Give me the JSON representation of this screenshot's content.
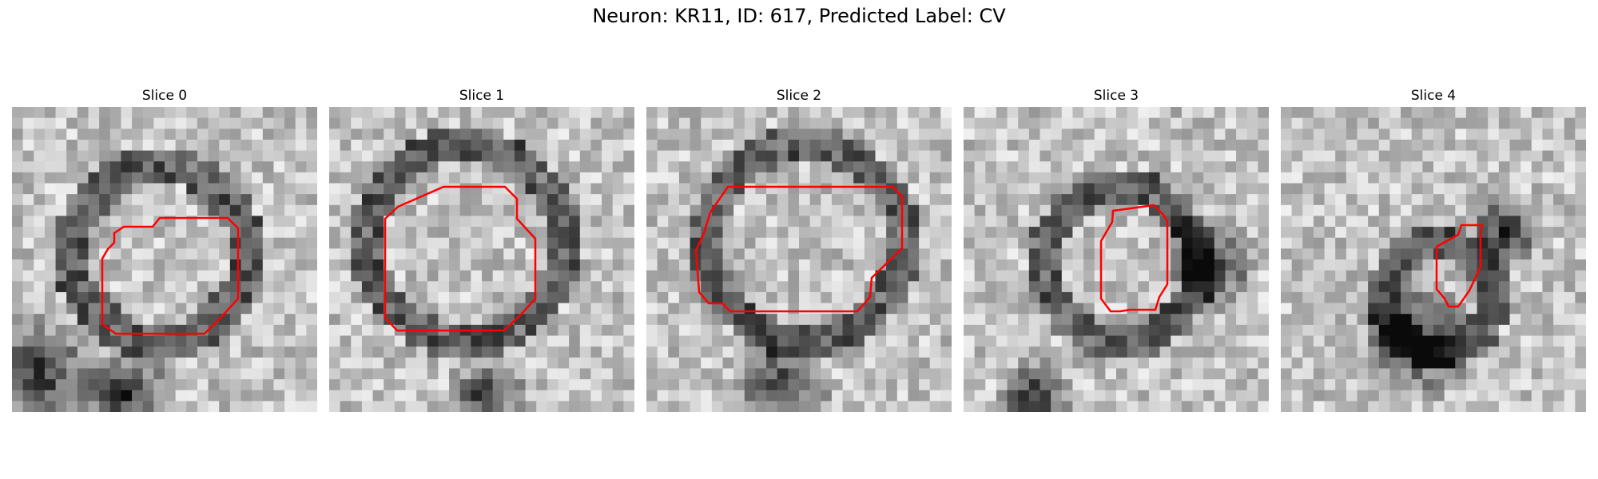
{
  "figure": {
    "title": "Neuron: KR11, ID: 617, Predicted Label: CV"
  },
  "panels": [
    {
      "title": "Slice 0",
      "image": "grayscale-micrograph-slice",
      "roi": "red-contour"
    },
    {
      "title": "Slice 1",
      "image": "grayscale-micrograph-slice",
      "roi": "red-contour"
    },
    {
      "title": "Slice 2",
      "image": "grayscale-micrograph-slice",
      "roi": "red-contour"
    },
    {
      "title": "Slice 3",
      "image": "grayscale-micrograph-slice",
      "roi": "red-contour"
    },
    {
      "title": "Slice 4",
      "image": "grayscale-micrograph-slice",
      "roi": "red-contour"
    }
  ],
  "colors": {
    "contour": "#ff0000"
  }
}
